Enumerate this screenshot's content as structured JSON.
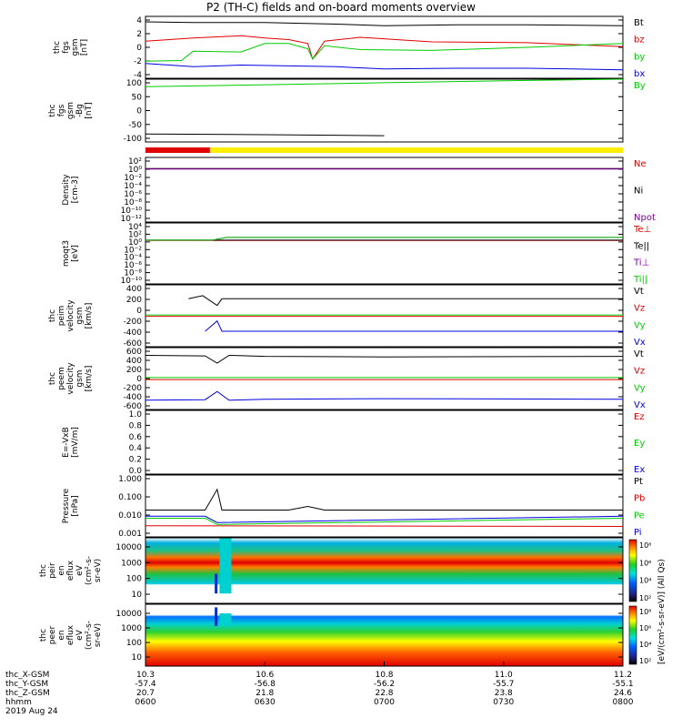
{
  "page": {
    "title": "P2 (TH-C) fields and on-board moments overview",
    "date": "2019 Aug 24"
  },
  "colors": {
    "black": "#000000",
    "red": "#e00000",
    "green": "#00cc00",
    "blue": "#0000e0",
    "yellow": "#ffee00",
    "purple": "#8000a0",
    "teal": "#008080"
  },
  "x_axis": {
    "range": [
      600,
      800
    ],
    "ticks": [
      {
        "row_values": [
          "10.3",
          "-57.4",
          "20.7",
          "0600"
        ]
      },
      {
        "row_values": [
          "10.6",
          "-56.8",
          "21.8",
          "0630"
        ]
      },
      {
        "row_values": [
          "10.8",
          "-56.2",
          "22.8",
          "0700"
        ]
      },
      {
        "row_values": [
          "11.0",
          "-55.7",
          "23.8",
          "0730"
        ]
      },
      {
        "row_values": [
          "11.2",
          "-55.1",
          "24.6",
          "0800"
        ]
      }
    ],
    "row_labels": [
      "thc_X-GSM",
      "thc_Y-GSM",
      "thc_Z-GSM",
      "hhmm"
    ]
  },
  "chart_data": [
    {
      "type": "line",
      "ylabel": [
        "thc",
        "fgs",
        "gsm",
        "[nT]"
      ],
      "ylim": [
        -4,
        4
      ],
      "yticks": [
        "4",
        "2",
        "0",
        "-2",
        "-4"
      ],
      "series": [
        {
          "name": "Bt",
          "color": "#000000",
          "x": [
            600,
            620,
            650,
            680,
            700,
            730,
            760,
            800
          ],
          "y": [
            3.3,
            3.2,
            3.2,
            3.0,
            2.8,
            2.9,
            2.9,
            2.8
          ]
        },
        {
          "name": "bz",
          "color": "#e00000",
          "x": [
            600,
            620,
            640,
            650,
            660,
            668,
            670,
            675,
            690,
            720,
            760,
            800
          ],
          "y": [
            0.8,
            1.2,
            1.5,
            1.2,
            1.0,
            0.5,
            -1.5,
            0.8,
            1.3,
            0.7,
            0.6,
            0.1
          ]
        },
        {
          "name": "by",
          "color": "#00cc00",
          "x": [
            600,
            615,
            620,
            640,
            650,
            660,
            668,
            670,
            675,
            690,
            720,
            760,
            800
          ],
          "y": [
            -1.8,
            -1.7,
            -0.5,
            -0.6,
            0.5,
            0.5,
            -0.2,
            -1.5,
            0.2,
            -0.3,
            -0.4,
            0.0,
            0.5
          ]
        },
        {
          "name": "bx",
          "color": "#0000e0",
          "x": [
            600,
            620,
            640,
            660,
            680,
            700,
            730,
            760,
            800
          ],
          "y": [
            -2.1,
            -2.5,
            -2.3,
            -2.4,
            -2.5,
            -2.8,
            -2.7,
            -2.7,
            -2.9
          ]
        }
      ]
    },
    {
      "type": "line",
      "ylabel": [
        "thc",
        "fgs",
        "gsm",
        "-Bg",
        "[nT]"
      ],
      "ylim": [
        -150,
        100
      ],
      "yticks": [
        "100",
        "50",
        "0",
        "-50",
        "-100"
      ],
      "series": [
        {
          "name": "By",
          "color": "#00cc00",
          "x": [
            600,
            650,
            700,
            750,
            800
          ],
          "y": [
            70,
            78,
            86,
            94,
            100
          ]
        },
        {
          "name": "",
          "color": "#000000",
          "x": [
            600,
            650,
            700
          ],
          "y": [
            -118,
            -121,
            -125
          ]
        }
      ],
      "bar": {
        "red_until": 627,
        "red_color": "#e00000",
        "yellow_color": "#ffee00"
      }
    },
    {
      "type": "line",
      "ylabel": [
        "Density",
        "[cm-3]"
      ],
      "ylim_log": [
        -13,
        3
      ],
      "yticks": [
        "10²",
        "10⁰",
        "10⁻²",
        "10⁻⁴",
        "10⁻⁶",
        "10⁻⁸",
        "10⁻¹⁰",
        "10⁻¹²"
      ],
      "series": [
        {
          "name": "Ne",
          "color": "#e00000",
          "x": [
            600,
            800
          ],
          "y": [
            1.6,
            1.6
          ]
        },
        {
          "name": "Ni",
          "color": "#000000",
          "x": [
            600,
            800
          ],
          "y": [
            1.8,
            1.8
          ]
        },
        {
          "name": "Npot",
          "color": "#8000a0",
          "x": [
            600,
            800
          ],
          "y": [
            1.4,
            1.4
          ]
        }
      ]
    },
    {
      "type": "line",
      "ylabel": [
        "moqt3",
        "[eV]"
      ],
      "ylim_log": [
        -11,
        4
      ],
      "yticks": [
        "10⁴",
        "10²",
        "10⁰",
        "10⁻²",
        "10⁻⁴",
        "10⁻⁶",
        "10⁻⁸",
        "10⁻¹⁰"
      ],
      "series": [
        {
          "name": "Te⊥",
          "color": "#e00000",
          "x": [
            600,
            800
          ],
          "y": [
            0.5,
            0.5
          ]
        },
        {
          "name": "Te||",
          "color": "#000000",
          "x": [
            600,
            800
          ],
          "y": [
            0.6,
            0.6
          ]
        },
        {
          "name": "Ti⊥",
          "color": "#8000a0",
          "x": [
            600,
            628,
            634,
            800
          ],
          "y": [
            0.6,
            0.6,
            2.8,
            2.8
          ]
        },
        {
          "name": "Ti||",
          "color": "#00cc00",
          "x": [
            600,
            628,
            634,
            800
          ],
          "y": [
            0.6,
            0.6,
            2.7,
            2.7
          ]
        }
      ]
    },
    {
      "type": "line",
      "ylabel": [
        "thc",
        "peim",
        "velocity",
        "gsm",
        "[km/s]"
      ],
      "ylim": [
        -600,
        600
      ],
      "yticks": [
        "400",
        "200",
        "0",
        "-200",
        "-400",
        "-600"
      ],
      "series": [
        {
          "name": "Vt",
          "color": "#000000",
          "x": [
            618,
            624,
            630,
            632,
            800
          ],
          "y": [
            330,
            390,
            200,
            330,
            330
          ]
        },
        {
          "name": "Vz",
          "color": "#e00000",
          "x": [
            600,
            800
          ],
          "y": [
            -10,
            -10
          ]
        },
        {
          "name": "Vy",
          "color": "#00cc00",
          "x": [
            600,
            800
          ],
          "y": [
            15,
            15
          ]
        },
        {
          "name": "Vx",
          "color": "#0000e0",
          "x": [
            625,
            630,
            632,
            800
          ],
          "y": [
            -300,
            -100,
            -300,
            -300
          ]
        }
      ]
    },
    {
      "type": "line",
      "ylabel": [
        "thc",
        "peem",
        "velocity",
        "gsm",
        "[km/s]"
      ],
      "ylim": [
        -600,
        600
      ],
      "yticks": [
        "600",
        "400",
        "200",
        "0",
        "-200",
        "-400",
        "-600"
      ],
      "series": [
        {
          "name": "Vt",
          "color": "#000000",
          "x": [
            600,
            625,
            630,
            635,
            650,
            700,
            800
          ],
          "y": [
            450,
            440,
            300,
            450,
            430,
            420,
            430
          ]
        },
        {
          "name": "Vz",
          "color": "#e00000",
          "x": [
            600,
            800
          ],
          "y": [
            -20,
            -20
          ]
        },
        {
          "name": "Vy",
          "color": "#00cc00",
          "x": [
            600,
            800
          ],
          "y": [
            20,
            20
          ]
        },
        {
          "name": "Vx",
          "color": "#0000e0",
          "x": [
            600,
            625,
            630,
            635,
            650,
            700,
            800
          ],
          "y": [
            -420,
            -410,
            -250,
            -420,
            -400,
            -390,
            -400
          ]
        }
      ]
    },
    {
      "type": "line",
      "ylabel": [
        "E=-VxB",
        "[mV/m]"
      ],
      "ylim": [
        0,
        1
      ],
      "yticks": [
        "1.0",
        "0.8",
        "0.6",
        "0.4",
        "0.2",
        "0.0"
      ],
      "series": [
        {
          "name": "Ez",
          "color": "#e00000",
          "x": [],
          "y": []
        },
        {
          "name": "Ey",
          "color": "#00cc00",
          "x": [],
          "y": []
        },
        {
          "name": "Ex",
          "color": "#0000e0",
          "x": [],
          "y": []
        }
      ]
    },
    {
      "type": "line",
      "ylabel": [
        "Pressure",
        "[nPa]"
      ],
      "ylim_log": [
        -3,
        0
      ],
      "yticks": [
        "1.000",
        "0.100",
        "0.010",
        "0.001"
      ],
      "series": [
        {
          "name": "Pt",
          "color": "#000000",
          "x": [
            600,
            625,
            630,
            632,
            660,
            668,
            675,
            800
          ],
          "y": [
            0.02,
            0.02,
            0.2,
            0.02,
            0.02,
            0.03,
            0.02,
            0.02
          ]
        },
        {
          "name": "Pb",
          "color": "#e00000",
          "x": [
            600,
            800
          ],
          "y": [
            0.0035,
            0.0032
          ]
        },
        {
          "name": "Pe",
          "color": "#00cc00",
          "x": [
            600,
            625,
            630,
            800
          ],
          "y": [
            0.008,
            0.008,
            0.004,
            0.008
          ]
        },
        {
          "name": "Pi",
          "color": "#0000e0",
          "x": [
            600,
            625,
            630,
            800
          ],
          "y": [
            0.01,
            0.01,
            0.005,
            0.01
          ]
        }
      ]
    },
    {
      "type": "heatmap",
      "ylabel": [
        "thc",
        "peir",
        "en",
        "eflux",
        "eV",
        "(cm²-s-",
        "sr-eV)"
      ],
      "yticks": [
        "10000",
        "1000",
        "100",
        "10"
      ],
      "colorbar_ticks": [
        "10⁸",
        "10⁶",
        "10⁴",
        "10²"
      ]
    },
    {
      "type": "heatmap",
      "ylabel": [
        "thc",
        "peer",
        "en",
        "eflux",
        "eV",
        "(cm²-s-",
        "sr-eV)"
      ],
      "yticks": [
        "10000",
        "1000",
        "100",
        "10"
      ],
      "colorbar_ticks": [
        "10⁸",
        "10⁶",
        "10⁴",
        "10²"
      ]
    }
  ],
  "colorbar_title": "[eV/(cm²-s-sr-eV)] (All Qs)"
}
